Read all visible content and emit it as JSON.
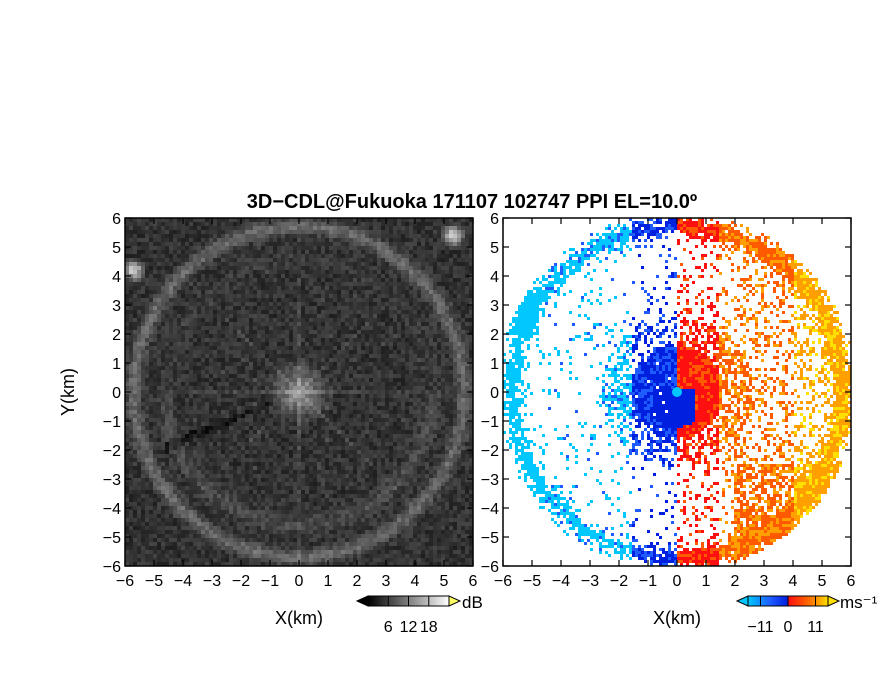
{
  "figure": {
    "title": "3D−CDL@Fukuoka 171107 102747 PPI EL=10.0º"
  },
  "chart_data": [
    {
      "type": "heatmap",
      "panel": "left",
      "quantity": "SNR",
      "xlabel": "X(km)",
      "ylabel": "Y(km)",
      "xlim": [
        -6,
        6
      ],
      "ylim": [
        -6,
        6
      ],
      "x_ticks": [
        "−6",
        "−5",
        "−4",
        "−3",
        "−2",
        "−1",
        "0",
        "1",
        "2",
        "3",
        "4",
        "5",
        "6"
      ],
      "y_ticks": [
        "6",
        "5",
        "4",
        "3",
        "2",
        "1",
        "0",
        "−1",
        "−2",
        "−3",
        "−4",
        "−5",
        "−6"
      ],
      "colorbar": {
        "unit": "dB",
        "range": [
          0,
          24
        ],
        "tick_values": [
          6,
          12,
          18
        ],
        "tick_labels": [
          "6",
          "12",
          "18"
        ],
        "colormap": "grayscale",
        "colors": [
          "#000000",
          "#ffffff"
        ],
        "extend": "both"
      },
      "features": {
        "ring_radius_km": 5.7,
        "radial_spokes": true,
        "strong_echoes": [
          {
            "x": -5.7,
            "y": 4.2
          },
          {
            "x": 5.3,
            "y": 5.4
          }
        ]
      }
    },
    {
      "type": "heatmap",
      "panel": "right",
      "quantity": "Doppler velocity",
      "xlabel": "X(km)",
      "xlim": [
        -6,
        6
      ],
      "ylim": [
        -6,
        6
      ],
      "x_ticks": [
        "−6",
        "−5",
        "−4",
        "−3",
        "−2",
        "−1",
        "0",
        "1",
        "2",
        "3",
        "4",
        "5",
        "6"
      ],
      "y_ticks": [
        "6",
        "5",
        "4",
        "3",
        "2",
        "1",
        "0",
        "−1",
        "−2",
        "−3",
        "−4",
        "−5",
        "−6"
      ],
      "colorbar": {
        "unit": "ms⁻¹",
        "range": [
          -16,
          16
        ],
        "tick_values": [
          -11,
          0,
          11
        ],
        "tick_labels": [
          "−11",
          "0",
          "11"
        ],
        "colormap": "cyan-blue-red-orange-yellow",
        "colors": [
          "#00c8ff",
          "#1e5cff",
          "#0020e0",
          "#ff1010",
          "#ff5a00",
          "#ffa000",
          "#ffe000"
        ],
        "extend": "both"
      },
      "features": {
        "negative_velocity_region": "west",
        "positive_velocity_region": "east"
      }
    }
  ]
}
